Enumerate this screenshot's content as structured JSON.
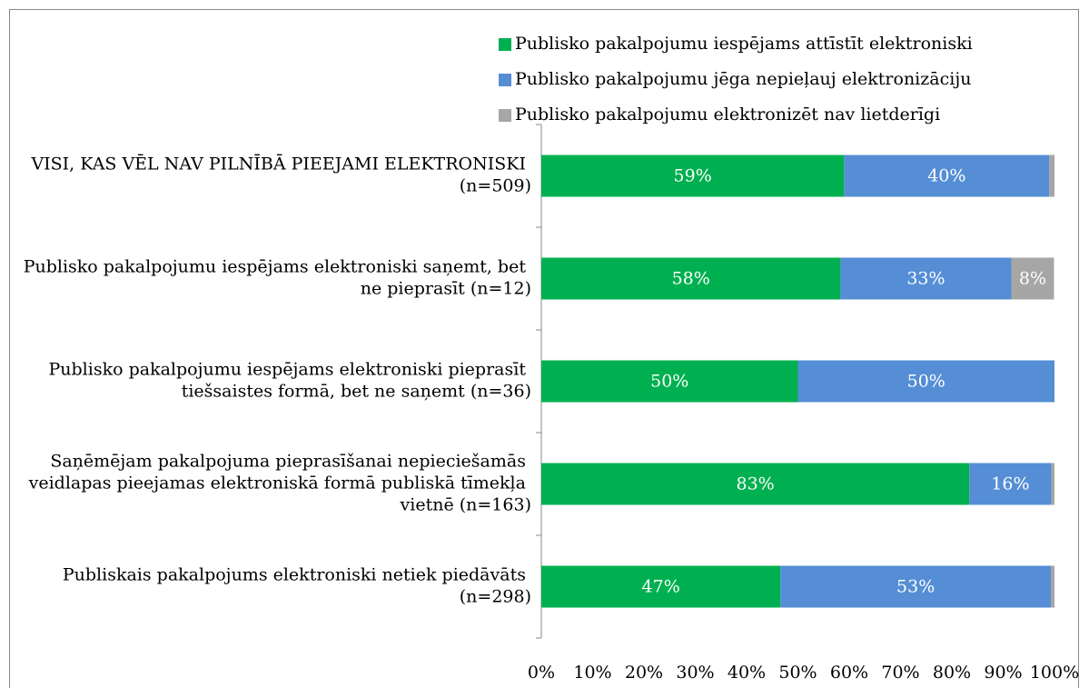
{
  "chart_data": {
    "type": "stacked_bar_horizontal",
    "categories": [
      "VISI, KAS VĒL NAV PILNĪBĀ PIEEJAMI ELEKTRONISKI (n=509)",
      "Publisko pakalpojumu iespējams elektroniski saņemt, bet ne pieprasīt (n=12)",
      "Publisko pakalpojumu iespējams elektroniski pieprasīt tiešsaistes formā, bet ne saņemt (n=36)",
      "Saņēmējam pakalpojuma pieprasīšanai nepieciešamās veidlapas pieejamas elektroniskā formā publiskā tīmekļa vietnē (n=163)",
      "Publiskais pakalpojums elektroniski netiek piedāvāts (n=298)"
    ],
    "series": [
      {
        "name": "Publisko pakalpojumu iespējams attīstīt elektroniski",
        "color": "#00b050",
        "values": [
          59,
          58.3,
          50,
          83.4,
          46.6
        ],
        "value_labels": [
          "59%",
          "58%",
          "50%",
          "83%",
          "47%"
        ]
      },
      {
        "name": "Publisko pakalpojumu jēga nepieļauj elektronizāciju",
        "color": "#558ed5",
        "values": [
          40,
          33.3,
          50,
          16,
          52.7
        ],
        "value_labels": [
          "40%",
          "33%",
          "50%",
          "16%",
          "53%"
        ]
      },
      {
        "name": "Publisko pakalpojumu elektronizēt nav lietderīgi",
        "color": "#a6a6a6",
        "values": [
          1,
          8.3,
          0,
          0.6,
          0.7
        ],
        "value_labels": [
          null,
          "8%",
          null,
          null,
          null
        ]
      }
    ],
    "xlim": [
      0,
      100
    ],
    "xticks": [
      {
        "value": 0,
        "label": "0%"
      },
      {
        "value": 10,
        "label": "10%"
      },
      {
        "value": 20,
        "label": "20%"
      },
      {
        "value": 30,
        "label": "30%"
      },
      {
        "value": 40,
        "label": "40%"
      },
      {
        "value": 50,
        "label": "50%"
      },
      {
        "value": 60,
        "label": "60%"
      },
      {
        "value": 70,
        "label": "70%"
      },
      {
        "value": 80,
        "label": "80%"
      },
      {
        "value": 90,
        "label": "90%"
      },
      {
        "value": 100,
        "label": "100%"
      }
    ],
    "legend": "top-right"
  }
}
